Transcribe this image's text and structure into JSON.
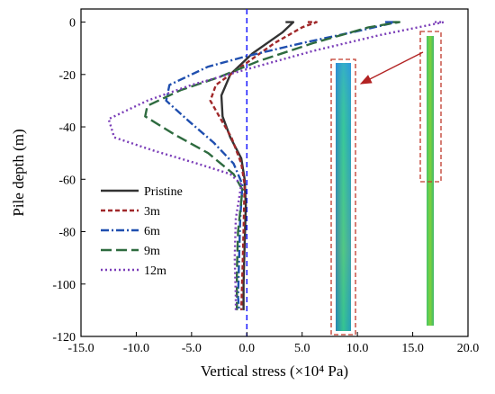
{
  "chart_data": {
    "type": "line",
    "xlabel": "Vertical stress (×10⁴ Pa)",
    "ylabel": "Pile depth (m)",
    "xlim": [
      -15,
      20
    ],
    "ylim": [
      -120,
      5
    ],
    "xticks": [
      "-15.0",
      "-10.0",
      "-5.0",
      "0.0",
      "5.0",
      "10.0",
      "15.0",
      "20.0"
    ],
    "yticks": [
      "0",
      "-20",
      "-40",
      "-60",
      "-80",
      "-100",
      "-120"
    ],
    "grid": false,
    "legend_position": "left",
    "zero_line_color": "#1a1aff",
    "series": [
      {
        "name": "Pristine",
        "color": "#333333",
        "dash": "solid",
        "points": [
          [
            3.5,
            0
          ],
          [
            4.2,
            0
          ],
          [
            3.2,
            -4
          ],
          [
            0.5,
            -12
          ],
          [
            -1.5,
            -20
          ],
          [
            -2.3,
            -28
          ],
          [
            -2.2,
            -36
          ],
          [
            -1.5,
            -44
          ],
          [
            -0.5,
            -52
          ],
          [
            -0.2,
            -60
          ],
          [
            -0.1,
            -70
          ],
          [
            -0.2,
            -85
          ],
          [
            -0.3,
            -100
          ],
          [
            -0.3,
            -110
          ]
        ]
      },
      {
        "name": "3m",
        "color": "#a0282a",
        "dash": "5,3",
        "points": [
          [
            5.5,
            0
          ],
          [
            6.3,
            0
          ],
          [
            5.0,
            -2
          ],
          [
            2.5,
            -8
          ],
          [
            -0.5,
            -17
          ],
          [
            -2.8,
            -24
          ],
          [
            -3.3,
            -30
          ],
          [
            -2.5,
            -36
          ],
          [
            -1.4,
            -44
          ],
          [
            -0.5,
            -54
          ],
          [
            -0.2,
            -62
          ],
          [
            -0.3,
            -80
          ],
          [
            -0.4,
            -95
          ],
          [
            -0.5,
            -110
          ]
        ]
      },
      {
        "name": "6m",
        "color": "#1f4faf",
        "dash": "9,3,2,3",
        "points": [
          [
            12.5,
            0
          ],
          [
            13.5,
            0
          ],
          [
            10.5,
            -3
          ],
          [
            5.0,
            -8
          ],
          [
            0,
            -13
          ],
          [
            -3.5,
            -17
          ],
          [
            -7.0,
            -24
          ],
          [
            -7.3,
            -30
          ],
          [
            -5.2,
            -38
          ],
          [
            -3.0,
            -46
          ],
          [
            -1.2,
            -54
          ],
          [
            -0.4,
            -62
          ],
          [
            -0.6,
            -75
          ],
          [
            -0.7,
            -90
          ],
          [
            -0.8,
            -105
          ],
          [
            -0.7,
            -110
          ]
        ]
      },
      {
        "name": "9m",
        "color": "#2e6b3f",
        "dash": "12,5",
        "points": [
          [
            13.2,
            0
          ],
          [
            13.8,
            0
          ],
          [
            11.0,
            -2
          ],
          [
            6.0,
            -8
          ],
          [
            1.0,
            -15
          ],
          [
            -2.5,
            -21
          ],
          [
            -6.0,
            -26
          ],
          [
            -9.0,
            -32
          ],
          [
            -9.2,
            -36
          ],
          [
            -6.5,
            -43
          ],
          [
            -3.5,
            -50
          ],
          [
            -1.2,
            -58
          ],
          [
            -0.4,
            -64
          ],
          [
            -0.8,
            -80
          ],
          [
            -0.9,
            -95
          ],
          [
            -0.9,
            -110
          ]
        ]
      },
      {
        "name": "12m",
        "color": "#7a3db8",
        "dash": "2,3",
        "points": [
          [
            17.0,
            0
          ],
          [
            17.8,
            0
          ],
          [
            12.0,
            -5
          ],
          [
            6.0,
            -11
          ],
          [
            0,
            -18
          ],
          [
            -5.0,
            -24
          ],
          [
            -9.0,
            -30
          ],
          [
            -12.5,
            -37
          ],
          [
            -12.0,
            -44
          ],
          [
            -8.5,
            -49
          ],
          [
            -4.5,
            -54
          ],
          [
            -1.5,
            -58
          ],
          [
            -0.5,
            -62
          ],
          [
            -1.0,
            -75
          ],
          [
            -1.1,
            -90
          ],
          [
            -1.0,
            -105
          ],
          [
            -1.0,
            -110
          ]
        ]
      }
    ]
  }
}
